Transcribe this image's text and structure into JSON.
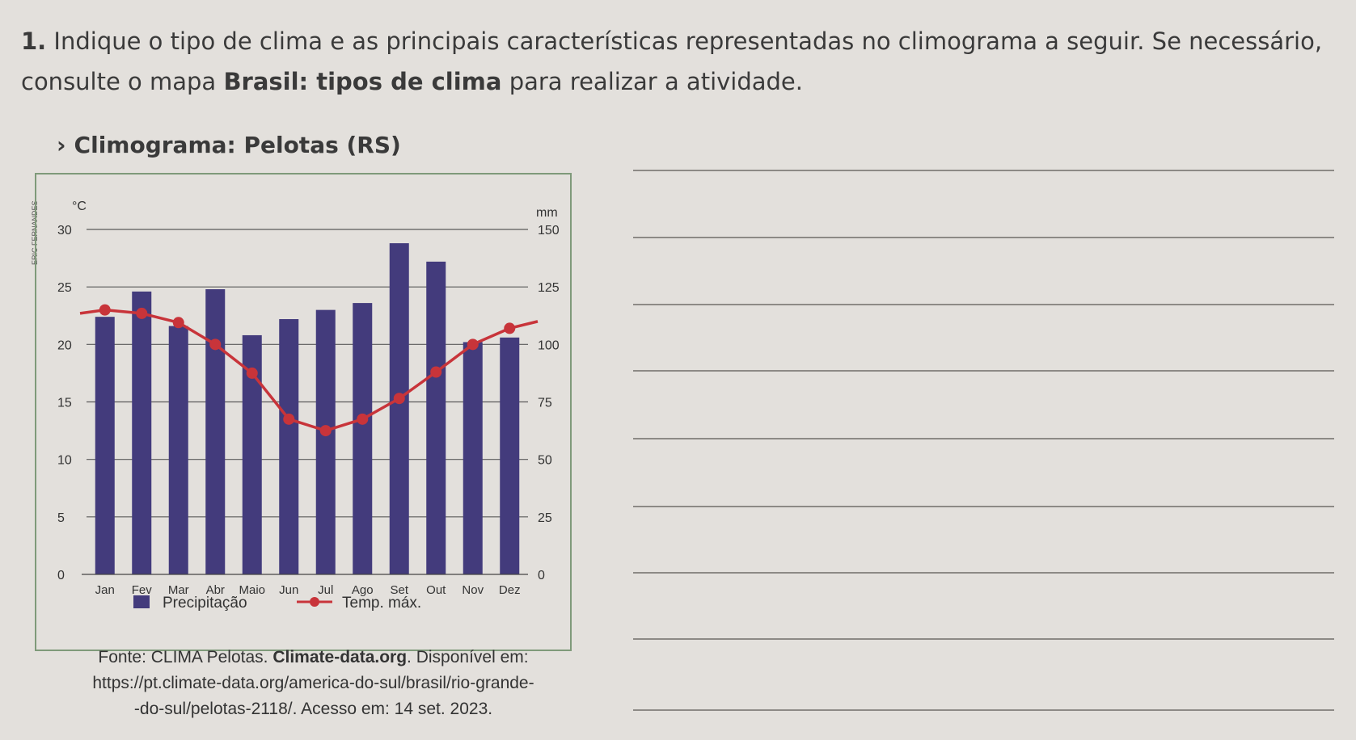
{
  "question": {
    "number": "1.",
    "text_part1": "Indique o tipo de clima e as principais características representadas no climograma a seguir. Se necessário, consulte o mapa",
    "text_bold": "Brasil: tipos de clima",
    "text_part2": "para realizar a atividade."
  },
  "figure": {
    "title_marker": "›",
    "title": "Climograma: Pelotas (RS)",
    "credit": "ERIC FERNANDES"
  },
  "source": {
    "prefix": "Fonte: CLIMA Pelotas.",
    "bold": "Climate-data.org",
    "suffix": ". Disponível em:",
    "url_line1": "https://pt.climate-data.org/america-do-sul/brasil/rio-grande-",
    "url_line2": "-do-sul/pelotas-2118/. Acesso em: 14 set. 2023."
  },
  "chart_data": {
    "type": "bar",
    "categories": [
      "Jan",
      "Fev",
      "Mar",
      "Abr",
      "Maio",
      "Jun",
      "Jul",
      "Ago",
      "Set",
      "Out",
      "Nov",
      "Dez"
    ],
    "series": [
      {
        "name": "Precipitação",
        "type": "bar",
        "axis": "right",
        "values": [
          112,
          123,
          108,
          124,
          104,
          111,
          115,
          118,
          144,
          136,
          101,
          103
        ],
        "color": "#433b7c"
      },
      {
        "name": "Temp. máx.",
        "type": "line",
        "axis": "left",
        "values": [
          23,
          22.7,
          21.9,
          20,
          17.5,
          13.5,
          12.5,
          13.5,
          15.3,
          17.6,
          20,
          21.4
        ],
        "color": "#c8343a"
      }
    ],
    "y_left": {
      "label": "°C",
      "ticks": [
        0,
        5,
        10,
        15,
        20,
        25,
        30
      ],
      "range": [
        0,
        30
      ]
    },
    "y_right": {
      "label": "mm",
      "ticks": [
        0,
        25,
        50,
        75,
        100,
        125,
        150
      ],
      "range": [
        0,
        150
      ]
    },
    "grid": true,
    "legend_position": "bottom"
  },
  "answer_lines_count": 9,
  "colors": {
    "background": "#e3e0dc",
    "frame": "#7f9a7a",
    "bar": "#433b7c",
    "line": "#c8343a"
  }
}
